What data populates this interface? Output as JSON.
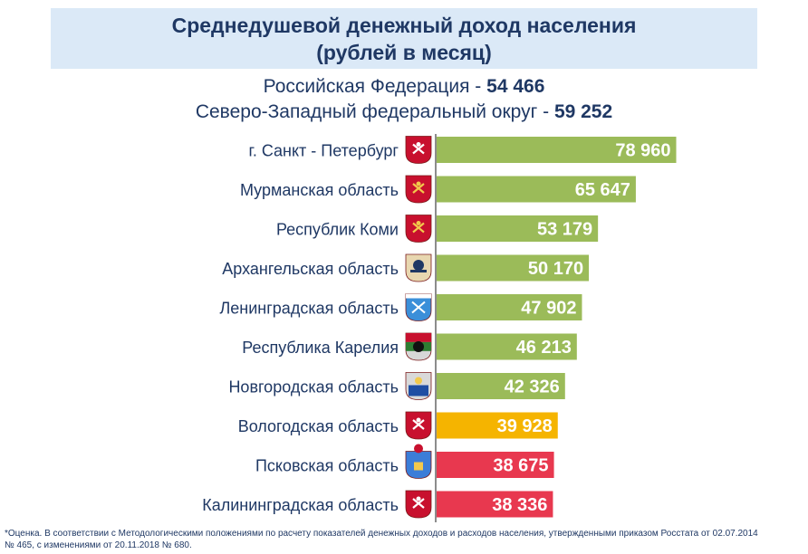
{
  "header": {
    "title_line1": "Среднедушевой денежный доход населения",
    "title_line2": "(рублей в месяц)"
  },
  "summary": [
    {
      "label": "Российская Федерация   -",
      "value": "54 466"
    },
    {
      "label": "Северо-Западный федеральный округ -",
      "value": "59 252"
    }
  ],
  "chart_data": {
    "type": "bar",
    "orientation": "horizontal",
    "categories": [
      "г. Санкт - Петербург",
      "Мурманская область",
      "Республик Коми",
      "Архангельская область",
      "Ленинградская область",
      "Республика Карелия",
      "Новгородская область",
      "Вологодская  область",
      "Псковская область",
      "Калининградская область"
    ],
    "values": [
      78960,
      65647,
      53179,
      50170,
      47902,
      46213,
      42326,
      39928,
      38675,
      38336
    ],
    "value_labels": [
      "78 960",
      "65 647",
      "53 179",
      "50 170",
      "47 902",
      "46 213",
      "42 326",
      "39 928",
      "38 675",
      "38 336"
    ],
    "bar_colors": [
      "#9bbb59",
      "#9bbb59",
      "#9bbb59",
      "#9bbb59",
      "#9bbb59",
      "#9bbb59",
      "#9bbb59",
      "#f5b400",
      "#e8384f",
      "#e8384f"
    ],
    "xlim": [
      0,
      80000
    ],
    "icons": [
      "spb-coat-of-arms-icon",
      "murmansk-coat-of-arms-icon",
      "komi-coat-of-arms-icon",
      "arkhangelsk-coat-of-arms-icon",
      "leningrad-coat-of-arms-icon",
      "karelia-coat-of-arms-icon",
      "novgorod-coat-of-arms-icon",
      "vologda-coat-of-arms-icon",
      "pskov-coat-of-arms-icon",
      "kaliningrad-coat-of-arms-icon"
    ],
    "title": "",
    "xlabel": "",
    "ylabel": "",
    "grid": false,
    "legend": "none"
  },
  "footnote": {
    "line1": "*Оценка. В соответствии  с Методологическими  положениями  по расчету показателей  денежных доходов и расходов населения,  утвержденными приказом Росстата от 02.07.2014",
    "line2": "№ 465, с изменениями  от 20.11.2018 № 680."
  },
  "colors": {
    "text": "#1f3864",
    "title_bg": "#dbe9f7",
    "bar_green": "#9bbb59",
    "bar_yellow": "#f5b400",
    "bar_red": "#e8384f"
  }
}
